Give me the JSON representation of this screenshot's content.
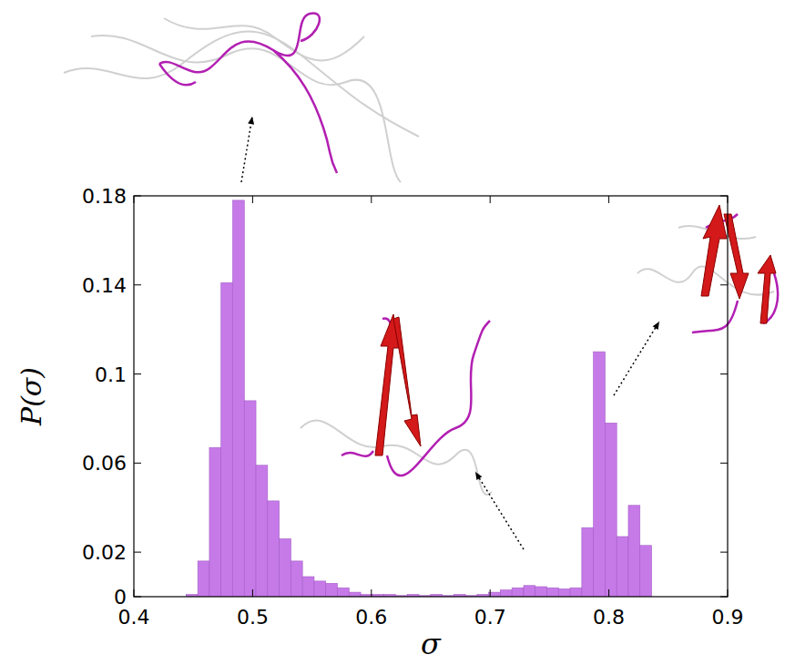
{
  "chart_data": {
    "type": "histogram",
    "x_label": "σ",
    "y_label": "P(σ)",
    "bins": [
      0.444,
      0.4538,
      0.4636,
      0.4734,
      0.4832,
      0.493,
      0.5028,
      0.5126,
      0.5224,
      0.5322,
      0.542,
      0.5518,
      0.5616,
      0.5714,
      0.5812,
      0.591,
      0.6008,
      0.6106,
      0.6204,
      0.6302,
      0.64,
      0.6498,
      0.6596,
      0.6694,
      0.6792,
      0.689,
      0.6988,
      0.7086,
      0.7184,
      0.7282,
      0.738,
      0.7478,
      0.7576,
      0.7674,
      0.7772,
      0.787,
      0.7968,
      0.8066,
      0.8164,
      0.8262,
      0.836
    ],
    "values": [
      0.001,
      0.016,
      0.067,
      0.141,
      0.178,
      0.088,
      0.059,
      0.043,
      0.026,
      0.016,
      0.009,
      0.007,
      0.006,
      0.004,
      0.002,
      0.001,
      0.001,
      0.001,
      0.0005,
      0.001,
      0.0005,
      0.001,
      0.0005,
      0.001,
      0.0005,
      0.001,
      0.002,
      0.003,
      0.004,
      0.005,
      0.0045,
      0.004,
      0.0035,
      0.004,
      0.031,
      0.11,
      0.078,
      0.027,
      0.041,
      0.023
    ],
    "color": "#c67ae8",
    "xlim": [
      0.4,
      0.9
    ],
    "ylim": [
      0,
      0.18
    ],
    "xticks": [
      0.4,
      0.5,
      0.6,
      0.7,
      0.8,
      0.9
    ],
    "yticks": [
      0,
      0.02,
      0.06,
      0.1,
      0.14,
      0.18
    ],
    "grid": false
  }
}
